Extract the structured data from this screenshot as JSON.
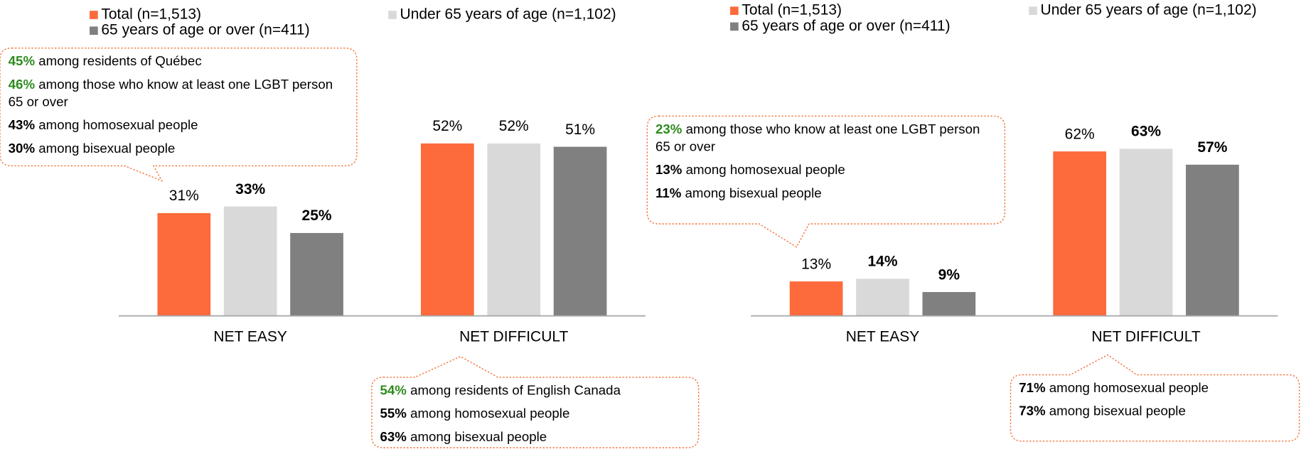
{
  "chart_data": [
    {
      "type": "bar",
      "categories": [
        "NET EASY",
        "NET DIFFICULT"
      ],
      "series": [
        {
          "name": "Total (n=1,513)",
          "color": "#fd6a3b",
          "values": [
            31,
            52
          ],
          "value_labels": [
            "31%",
            "52%"
          ],
          "label_colors": [
            "#000000",
            "#000000"
          ]
        },
        {
          "name": "Under 65 years of age (n=1,102)",
          "color": "#d9d9d9",
          "values": [
            33,
            52
          ],
          "value_labels": [
            "33%",
            "52%"
          ],
          "label_colors": [
            "#2e8b1e",
            "#000000"
          ]
        },
        {
          "name": "65 years of age or over (n=411)",
          "color": "#808080",
          "values": [
            25,
            51
          ],
          "value_labels": [
            "25%",
            "51%"
          ],
          "label_colors": [
            "#ff0000",
            "#000000"
          ]
        }
      ],
      "ylim": [
        0,
        60
      ],
      "annotations": [
        {
          "items": [
            {
              "value": "45%",
              "text": "among residents of Québec",
              "color": "#2e8b1e"
            },
            {
              "value": "46%",
              "text": "among those who know at least one LGBT person 65 or over",
              "color": "#2e8b1e"
            },
            {
              "value": "43%",
              "text": "among homosexual people",
              "color": "#000000"
            },
            {
              "value": "30%",
              "text": "among bisexual people",
              "color": "#000000"
            }
          ]
        },
        {
          "items": [
            {
              "value": "54%",
              "text": "among residents of English Canada",
              "color": "#2e8b1e"
            },
            {
              "value": "55%",
              "text": "among homosexual people",
              "color": "#000000"
            },
            {
              "value": "63%",
              "text": "among bisexual people",
              "color": "#000000"
            }
          ]
        }
      ]
    },
    {
      "type": "bar",
      "categories": [
        "NET EASY",
        "NET DIFFICULT"
      ],
      "series": [
        {
          "name": "Total (n=1,513)",
          "color": "#fd6a3b",
          "values": [
            13,
            62
          ],
          "value_labels": [
            "13%",
            "62%"
          ],
          "label_colors": [
            "#000000",
            "#000000"
          ]
        },
        {
          "name": "Under 65 years of age (n=1,102)",
          "color": "#d9d9d9",
          "values": [
            14,
            63
          ],
          "value_labels": [
            "14%",
            "63%"
          ],
          "label_colors": [
            "#2e8b1e",
            "#2e8b1e"
          ]
        },
        {
          "name": "65 years of age or over (n=411)",
          "color": "#808080",
          "values": [
            9,
            57
          ],
          "value_labels": [
            "9%",
            "57%"
          ],
          "label_colors": [
            "#ff0000",
            "#ff0000"
          ]
        }
      ],
      "ylim": [
        0,
        70
      ],
      "annotations": [
        {
          "items": [
            {
              "value": "23%",
              "text": "among those who know at least one LGBT person 65 or over",
              "color": "#2e8b1e"
            },
            {
              "value": "13%",
              "text": "among homosexual people",
              "color": "#000000"
            },
            {
              "value": "11%",
              "text": "among bisexual people",
              "color": "#000000"
            }
          ]
        },
        {
          "items": [
            {
              "value": "71%",
              "text": "among homosexual people",
              "color": "#000000"
            },
            {
              "value": "73%",
              "text": "among bisexual people",
              "color": "#000000"
            }
          ]
        }
      ]
    }
  ]
}
